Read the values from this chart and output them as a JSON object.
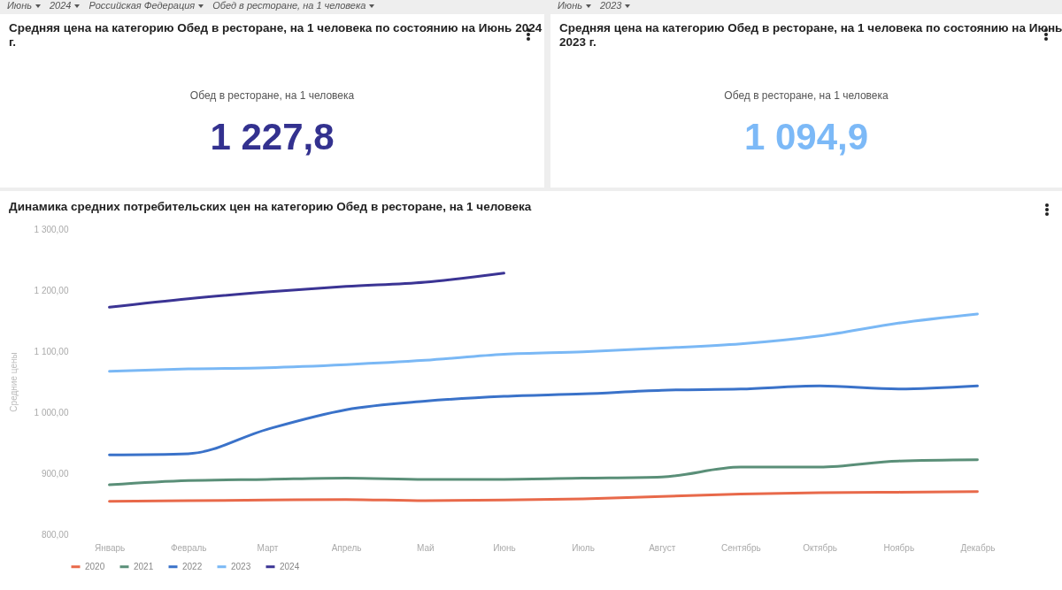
{
  "chart_data": [
    {
      "type": "other",
      "title": "Средняя цена на категорию Обед в ресторане, на 1 человека по состоянию на Июнь 2024 г.",
      "subtitle": "Обед в ресторане, на 1 человека",
      "color": "#33318f",
      "annotations": [
        "1 227,8",
        "Июнь",
        "2024",
        "Российская Федерация",
        "Обед в ресторане, на 1 человека"
      ]
    },
    {
      "type": "other",
      "title": "Средняя цена на категорию Обед в ресторане, на 1 человека по состоянию на Июнь 2023 г.",
      "subtitle": "Обед в ресторане, на 1 человека",
      "color": "#7cb9f7",
      "annotations": [
        "1 094,9",
        "Июнь",
        "2023"
      ]
    },
    {
      "type": "line",
      "title": "Динамика средних потребительских цен на категорию Обед в ресторане, на 1 человека",
      "ylabel": "Средние цены",
      "categories": [
        "Январь",
        "Февраль",
        "Март",
        "Апрель",
        "Май",
        "Июнь",
        "Июль",
        "Август",
        "Сентябрь",
        "Октябрь",
        "Ноябрь",
        "Декабрь"
      ],
      "ylim": [
        800,
        1300
      ],
      "yticks": [
        {
          "value": 800,
          "label": "800,00"
        },
        {
          "value": 900,
          "label": "900,00"
        },
        {
          "value": 1000,
          "label": "1 000,00"
        },
        {
          "value": 1100,
          "label": "1 100,00"
        },
        {
          "value": 1200,
          "label": "1 200,00"
        },
        {
          "value": 1300,
          "label": "1 300,00"
        }
      ],
      "grid": false,
      "legend": "bottom",
      "series": [
        {
          "name": "2020",
          "color": "#e8694a",
          "values": [
            854,
            855,
            856,
            857,
            855,
            856,
            858,
            862,
            866,
            868,
            869,
            870
          ]
        },
        {
          "name": "2021",
          "color": "#5a8f78",
          "values": [
            881,
            888,
            890,
            892,
            890,
            890,
            892,
            894,
            910,
            910,
            920,
            922
          ]
        },
        {
          "name": "2022",
          "color": "#3a72c9",
          "values": [
            930,
            932,
            972,
            1004,
            1018,
            1026,
            1030,
            1036,
            1038,
            1043,
            1038,
            1043
          ]
        },
        {
          "name": "2023",
          "color": "#7ab8f5",
          "values": [
            1067,
            1071,
            1073,
            1078,
            1085,
            1094.9,
            1099,
            1105,
            1112,
            1125,
            1146,
            1161
          ]
        },
        {
          "name": "2024",
          "color": "#3b3494",
          "values": [
            1172,
            1186,
            1197,
            1206,
            1213,
            1227.8,
            null,
            null,
            null,
            null,
            null,
            null
          ]
        }
      ]
    }
  ]
}
